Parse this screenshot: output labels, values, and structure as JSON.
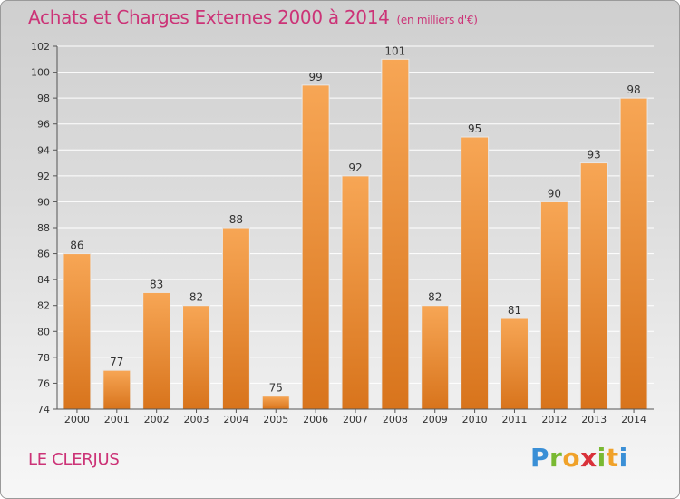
{
  "title": "Achats et Charges Externes 2000 à 2014",
  "title_unit": "(en milliers d'€)",
  "commune": "LE CLERJUS",
  "brand": {
    "name": "Proxiti",
    "letters": [
      "P",
      "r",
      "o",
      "x",
      "i",
      "t",
      "i"
    ],
    "colors": [
      "#3a8fd6",
      "#79b932",
      "#f0a22a",
      "#d9313a"
    ]
  },
  "colors": {
    "title": "#cc3377",
    "bar_top": "#f7a655",
    "bar_bottom": "#d8741c",
    "grid": "#ffffff",
    "axis_text": "#333333"
  },
  "chart_data": {
    "type": "bar",
    "title": "Achats et Charges Externes 2000 à 2014",
    "subtitle": "(en milliers d'€)",
    "xlabel": "",
    "ylabel": "",
    "categories": [
      "2000",
      "2001",
      "2002",
      "2003",
      "2004",
      "2005",
      "2006",
      "2007",
      "2008",
      "2009",
      "2010",
      "2011",
      "2012",
      "2013",
      "2014"
    ],
    "values": [
      86,
      77,
      83,
      82,
      88,
      75,
      99,
      92,
      101,
      82,
      95,
      81,
      90,
      93,
      98
    ],
    "ylim": [
      74,
      102
    ],
    "yticks": [
      74,
      76,
      78,
      80,
      82,
      84,
      86,
      88,
      90,
      92,
      94,
      96,
      98,
      100,
      102
    ],
    "grid": true,
    "data_labels": true
  }
}
